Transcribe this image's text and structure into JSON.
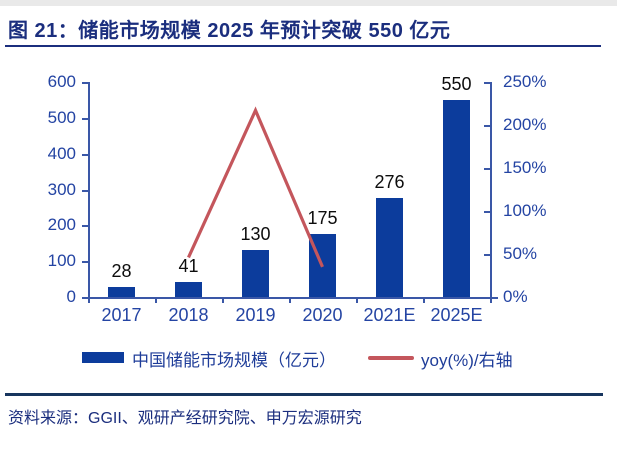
{
  "header": {
    "title": "图 21：储能市场规模 2025 年预计突破 550 亿元"
  },
  "chart_data": {
    "type": "bar",
    "title": "储能市场规模 2025 年预计突破 550 亿元",
    "categories": [
      "2017",
      "2018",
      "2019",
      "2020",
      "2021E",
      "2025E"
    ],
    "series": [
      {
        "name": "中国储能市场规模（亿元）",
        "type": "bar",
        "axis": "left",
        "color": "#0c3c9c",
        "values": [
          28,
          41,
          130,
          175,
          276,
          550
        ],
        "data_labels": [
          "28",
          "41",
          "130",
          "175",
          "276",
          "550"
        ]
      },
      {
        "name": "yoy(%)/右轴",
        "type": "line",
        "axis": "right",
        "color": "#c4565c",
        "values": [
          null,
          46,
          217,
          35,
          null,
          null
        ]
      }
    ],
    "left_axis": {
      "min": 0,
      "max": 600,
      "tick_values": [
        0,
        100,
        200,
        300,
        400,
        500,
        600
      ]
    },
    "right_axis": {
      "min": 0,
      "max": 250,
      "tick_values": [
        0,
        50,
        100,
        150,
        200,
        250
      ],
      "tick_labels": [
        "0%",
        "50%",
        "100%",
        "150%",
        "200%",
        "250%"
      ]
    },
    "grid": false,
    "legend_position": "bottom"
  },
  "legend": {
    "bars": "中国储能市场规模（亿元）",
    "line": "yoy(%)/右轴"
  },
  "footer": {
    "source": "资料来源：GGII、观研产经研究院、申万宏源研究"
  },
  "colors": {
    "bar": "#0c3c9c",
    "line": "#c4565c",
    "axis": "#3a57a7",
    "tick_text": "#2444a3",
    "title_text": "#1b2e7e"
  }
}
